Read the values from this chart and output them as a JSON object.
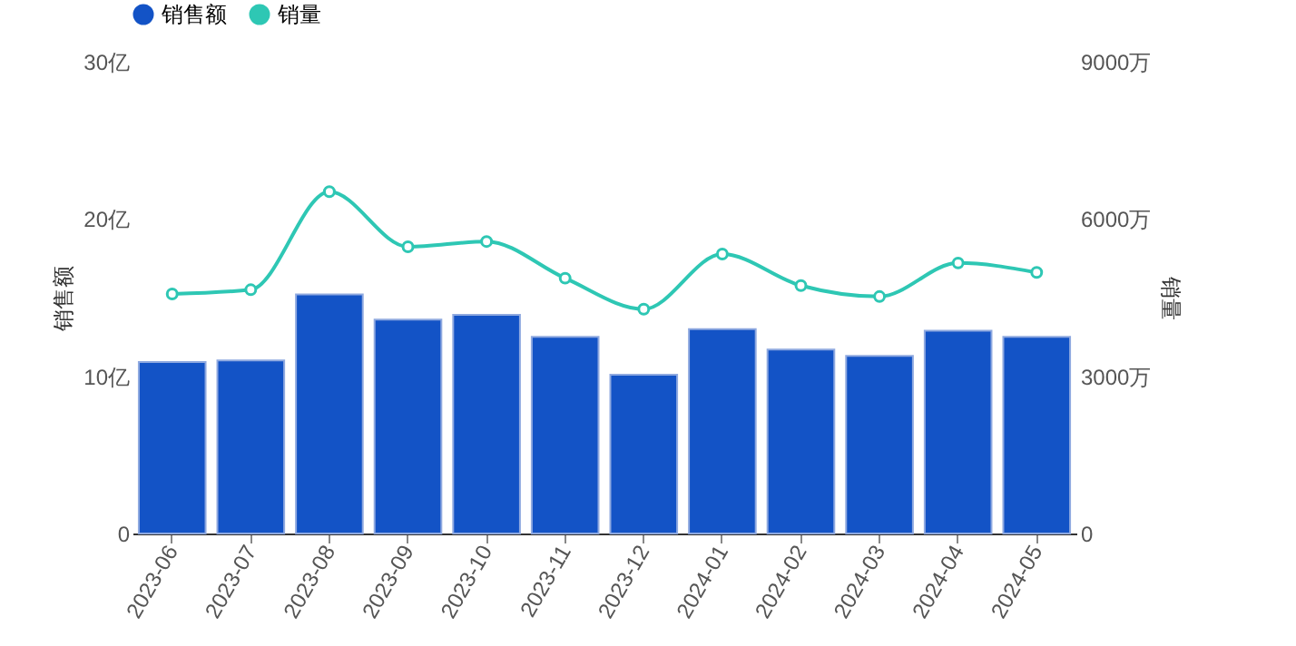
{
  "chart_data": {
    "type": "bar",
    "categories": [
      "2023-06",
      "2023-07",
      "2023-08",
      "2023-09",
      "2023-10",
      "2023-11",
      "2023-12",
      "2024-01",
      "2024-02",
      "2024-03",
      "2024-04",
      "2024-05"
    ],
    "series": [
      {
        "name": "销售额",
        "color": "#1353c6",
        "values": [
          10.9,
          11.0,
          15.2,
          13.6,
          13.9,
          12.5,
          10.1,
          13.0,
          11.7,
          11.3,
          12.9,
          12.5
        ]
      },
      {
        "name": "销量",
        "type": "line",
        "axis": "y2",
        "color": "#2ec7b4",
        "values": [
          4570,
          4650,
          6520,
          5470,
          5570,
          4870,
          4280,
          5330,
          4730,
          4520,
          5160,
          4980
        ]
      }
    ],
    "ylabel": "销售额",
    "y2label": "销量",
    "ylim": [
      0,
      30
    ],
    "yticks": [
      0,
      {
        "value": 10,
        "label": "10亿"
      },
      {
        "value": 20,
        "label": "20亿"
      },
      {
        "value": 30,
        "label": "30亿"
      }
    ],
    "y2lim": [
      0,
      9000
    ],
    "y2ticks": [
      0,
      {
        "value": 3000,
        "label": "3000万"
      },
      {
        "value": 6000,
        "label": "6000万"
      },
      {
        "value": 9000,
        "label": "9000万"
      }
    ],
    "legend": "top",
    "marker": "circle"
  }
}
